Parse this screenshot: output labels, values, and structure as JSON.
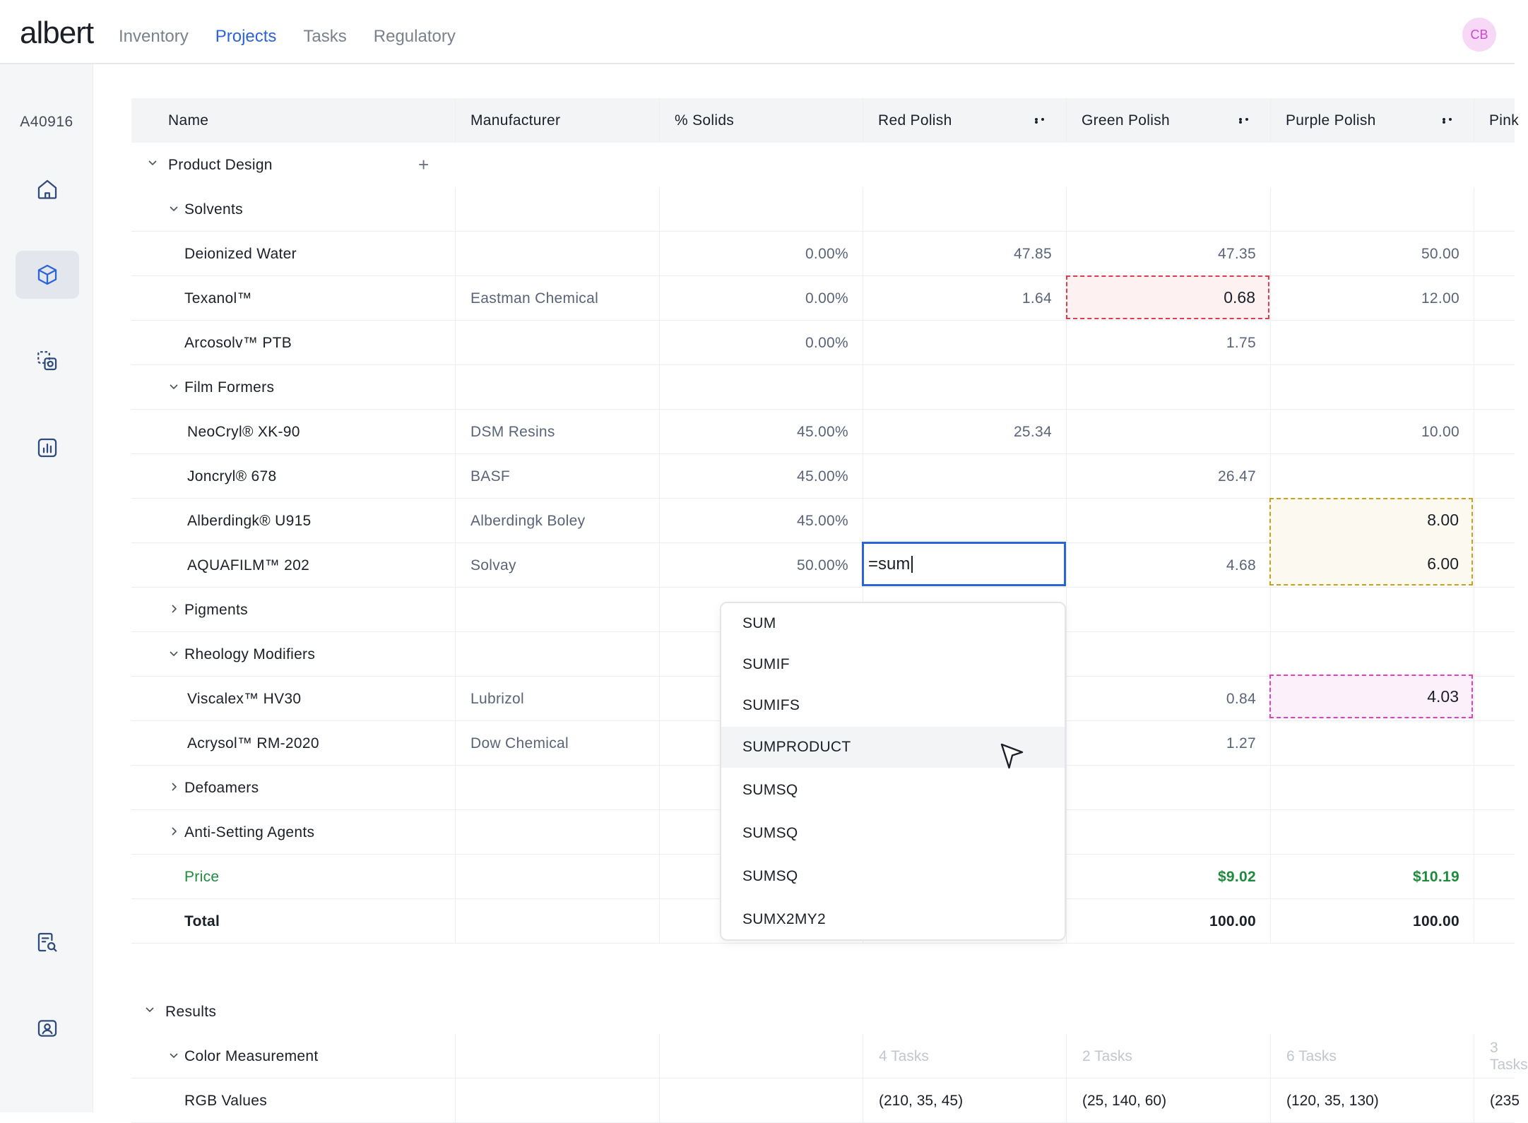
{
  "app": {
    "logo": "albert",
    "avatar_initials": "CB",
    "project_id": "A40916"
  },
  "nav": [
    "Inventory",
    "Projects",
    "Tasks",
    "Regulatory"
  ],
  "nav_active": "Projects",
  "sidebar_icons": [
    "home-icon",
    "box-icon",
    "copy-search-icon",
    "chart-icon",
    "document-search-icon",
    "user-card-icon"
  ],
  "columns": {
    "name": "Name",
    "manufacturer": "Manufacturer",
    "solids": "% Solids",
    "red": "Red Polish",
    "green": "Green Polish",
    "purple": "Purple Polish",
    "pink": "Pink"
  },
  "sections": {
    "product_design": "Product Design",
    "results": "Results"
  },
  "rows": [
    {
      "level": 1,
      "name": "Solvents",
      "chevron": "down"
    },
    {
      "level": 2,
      "name": "Deionized Water",
      "mfr": "",
      "solids": "0.00%",
      "red": "47.85",
      "green": "47.35",
      "purple": "50.00"
    },
    {
      "level": 2,
      "name": "Texanol™",
      "mfr": "Eastman Chemical",
      "solids": "0.00%",
      "red": "1.64",
      "green": "",
      "purple": "12.00"
    },
    {
      "level": 2,
      "name": "Arcosolv™ PTB",
      "mfr": "",
      "solids": "0.00%",
      "red": "",
      "green": "1.75",
      "purple": ""
    },
    {
      "level": 1,
      "name": "Film Formers",
      "chevron": "down"
    },
    {
      "level": 2,
      "name": "NeoCryl® XK-90",
      "mfr": "DSM Resins",
      "solids": "45.00%",
      "red": "25.34",
      "green": "",
      "purple": "10.00"
    },
    {
      "level": 2,
      "name": "Joncryl® 678",
      "mfr": "BASF",
      "solids": "45.00%",
      "red": "",
      "green": "26.47",
      "purple": ""
    },
    {
      "level": 2,
      "name": "Alberdingk® U915",
      "mfr": "Alberdingk Boley",
      "solids": "45.00%",
      "red": "",
      "green": "",
      "purple": ""
    },
    {
      "level": 2,
      "name": "AQUAFILM™ 202",
      "mfr": "Solvay",
      "solids": "50.00%",
      "red": "",
      "green": "4.68",
      "purple": ""
    },
    {
      "level": 1,
      "name": "Pigments",
      "chevron": "right"
    },
    {
      "level": 1,
      "name": "Rheology Modifiers",
      "chevron": "down"
    },
    {
      "level": 2,
      "name": "Viscalex™ HV30",
      "mfr": "Lubrizol",
      "solids": "",
      "red": "",
      "green": "0.84",
      "purple": ""
    },
    {
      "level": 2,
      "name": "Acrysol™ RM-2020",
      "mfr": "Dow Chemical",
      "solids": "",
      "red": "",
      "green": "1.27",
      "purple": ""
    },
    {
      "level": 1,
      "name": "Defoamers",
      "chevron": "right"
    },
    {
      "level": 1,
      "name": "Anti-Setting Agents",
      "chevron": "right"
    },
    {
      "level": 2,
      "name": "Price",
      "kind": "price",
      "green": "$9.02",
      "purple": "$10.19"
    },
    {
      "level": 2,
      "name": "Total",
      "kind": "total",
      "green": "100.00",
      "purple": "100.00"
    }
  ],
  "highlights": {
    "texanol_green": "0.68",
    "alberdingk_purple": "8.00",
    "aquafilm_purple": "6.00",
    "viscalex_purple": "4.03"
  },
  "editing_cell": {
    "value": "=sum"
  },
  "results_rows": [
    {
      "level": 1,
      "name": "Color Measurement",
      "chevron": "down",
      "red": "4 Tasks",
      "green": "2 Tasks",
      "purple": "6 Tasks",
      "pink": "3 Tasks"
    },
    {
      "level": 2,
      "name": "RGB Values",
      "red": "(210, 35, 45)",
      "green": "(25, 140, 60)",
      "purple": "(120, 35, 130)",
      "pink": "(235"
    }
  ],
  "dropdown": {
    "items": [
      "SUM",
      "SUMIF",
      "SUMIFS",
      "SUMPRODUCT",
      "SUMSQ",
      "SUMSQ",
      "SUMSQ",
      "SUMX2MY2"
    ],
    "hovered_index": 3
  },
  "colors": {
    "accent": "#2a64d6",
    "price_green": "#1e8a3c",
    "highlight_red": "#e23b4b",
    "highlight_yellow": "#c9a316",
    "highlight_pink": "#e43fc0"
  }
}
